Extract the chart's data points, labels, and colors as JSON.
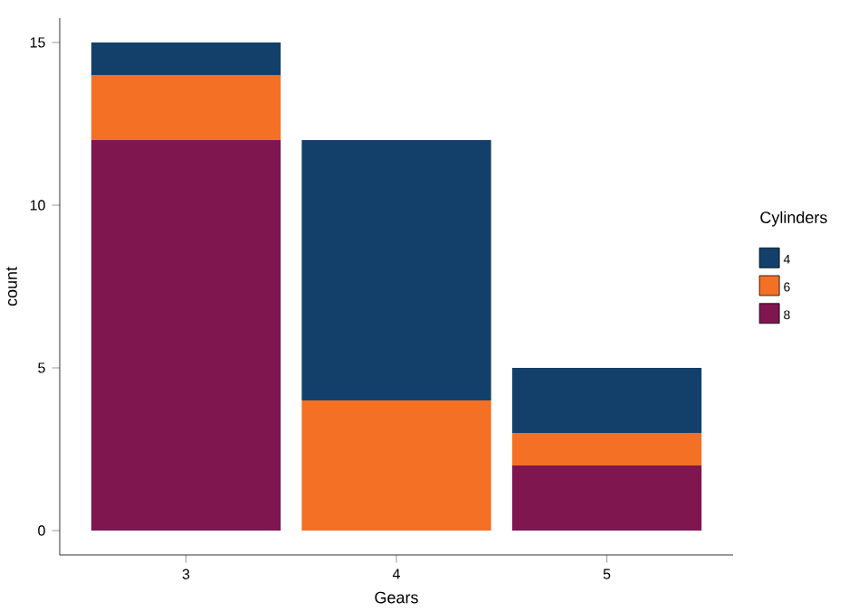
{
  "chart_data": {
    "type": "bar",
    "stacked": true,
    "xlabel": "Gears",
    "ylabel": "count",
    "legend_title": "Cylinders",
    "legend": "right",
    "categories": [
      "3",
      "4",
      "5"
    ],
    "series": [
      {
        "name": "8",
        "color": "#7f1650",
        "values": [
          12,
          0,
          2
        ]
      },
      {
        "name": "6",
        "color": "#f47024",
        "values": [
          2,
          4,
          1
        ]
      },
      {
        "name": "4",
        "color": "#13406b",
        "values": [
          1,
          8,
          2
        ]
      }
    ],
    "ylim": [
      -0.75,
      15.75
    ],
    "yticks": [
      0,
      5,
      10,
      15
    ],
    "grid": false
  }
}
